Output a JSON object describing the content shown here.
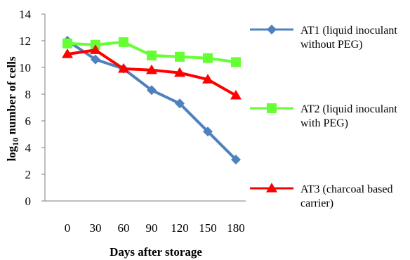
{
  "chart_data": {
    "type": "line",
    "x": [
      0,
      30,
      60,
      90,
      120,
      150,
      180
    ],
    "xlabel": "Days after storage",
    "ylabel": "log10 number of cells",
    "ylabel_main": "log",
    "ylabel_sub": "10",
    "ylabel_rest": " number of cells",
    "ylim": [
      0,
      14
    ],
    "yticks": [
      0,
      2,
      4,
      6,
      8,
      10,
      12,
      14
    ],
    "grid": false,
    "legend_position": "right",
    "series": [
      {
        "name": "AT1 (liquid inoculant without PEG)",
        "legend_lines": [
          "AT1 (liquid inoculant",
          "without PEG)"
        ],
        "color": "#4F81BD",
        "marker": "diamond",
        "values": [
          12.0,
          10.6,
          9.9,
          8.3,
          7.3,
          5.2,
          3.1
        ]
      },
      {
        "name": "AT2 (liquid inoculant with PEG)",
        "legend_lines": [
          "AT2 (liquid inoculant",
          "with PEG)"
        ],
        "color": "#66FF33",
        "marker": "square",
        "values": [
          11.8,
          11.7,
          11.9,
          10.9,
          10.8,
          10.7,
          10.4
        ]
      },
      {
        "name": "AT3 (charcoal based carrier)",
        "legend_lines": [
          "AT3 (charcoal based",
          "carrier)"
        ],
        "color": "#FF0000",
        "marker": "triangle",
        "values": [
          11.0,
          11.3,
          9.9,
          9.8,
          9.6,
          9.1,
          7.9
        ]
      }
    ]
  }
}
